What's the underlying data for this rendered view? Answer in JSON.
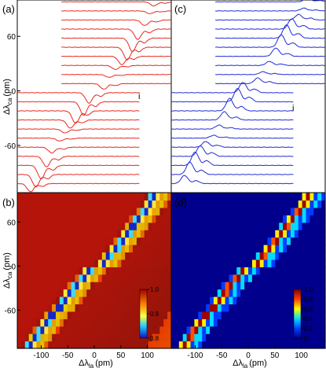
{
  "chart_data": [
    {
      "panel": "(a)",
      "type": "line",
      "title": "",
      "ylabel": "Δλca",
      "ylabel_main": "Δλ",
      "ylabel_sub": "ca",
      "yunit": "(pm)",
      "yticks": [
        "60",
        "0",
        "-60"
      ],
      "ylim": [
        -112,
        100
      ],
      "line_color": "#e8281e",
      "marker_label": "i",
      "traces": 21,
      "offset_lambda_ca": [
        -102,
        -92,
        -82,
        -72,
        -62,
        -52,
        -42,
        -32,
        -22,
        -12,
        -2,
        8,
        18,
        28,
        38,
        48,
        58,
        68,
        78,
        88,
        98
      ],
      "dip_lambda_la": [
        -120,
        -110,
        -100,
        -90,
        -80,
        -65,
        -55,
        -45,
        -35,
        -20,
        -10,
        18,
        28,
        40,
        52,
        62,
        72,
        82,
        95,
        105,
        112
      ]
    },
    {
      "panel": "(b)",
      "type": "heatmap",
      "ylabel_main": "Δλ",
      "ylabel_sub": "ca",
      "yunit": "(pm)",
      "xlabel_main": "Δλ",
      "xlabel_sub": "la",
      "xunit": "(pm)",
      "xticks": [
        "-100",
        "-50",
        "0",
        "50",
        "100"
      ],
      "yticks": [
        "60",
        "0",
        "-60"
      ],
      "xlim": [
        -145,
        145
      ],
      "ylim": [
        -112,
        100
      ],
      "colorbar": {
        "ticks": [
          "1.0",
          "0.9",
          "0.8"
        ],
        "range": [
          0.8,
          1.0
        ],
        "colormap": "hot-to-jet"
      }
    },
    {
      "panel": "(c)",
      "type": "line",
      "title": "",
      "line_color": "#1f2bd6",
      "marker_label": "i",
      "traces": 21,
      "offset_lambda_ca": [
        -102,
        -92,
        -82,
        -72,
        -62,
        -52,
        -42,
        -32,
        -22,
        -12,
        -2,
        8,
        18,
        28,
        38,
        48,
        58,
        68,
        78,
        88,
        98
      ],
      "peak_lambda_la": [
        -120,
        -110,
        -100,
        -90,
        -80,
        -65,
        -55,
        -45,
        -35,
        -20,
        -10,
        18,
        28,
        40,
        52,
        62,
        72,
        82,
        95,
        105,
        112
      ]
    },
    {
      "panel": "(d)",
      "type": "heatmap",
      "xlabel_main": "Δλ",
      "xlabel_sub": "la",
      "xunit": "(pm)",
      "xticks": [
        "-100",
        "-50",
        "0",
        "50",
        "100"
      ],
      "xlim": [
        -145,
        145
      ],
      "ylim": [
        -112,
        100
      ],
      "colorbar": {
        "ticks": [
          "1.0",
          "0.8",
          "0.6",
          "0.4",
          "0.2",
          "0"
        ],
        "range": [
          0,
          1.0
        ],
        "colormap": "jet"
      }
    }
  ]
}
